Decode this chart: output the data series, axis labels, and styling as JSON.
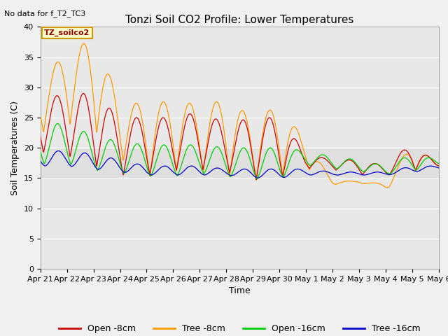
{
  "title": "Tonzi Soil CO2 Profile: Lower Temperatures",
  "annotation_top_left": "No data for f_T2_TC3",
  "legend_box_label": "TZ_soilco2",
  "xlabel": "Time",
  "ylabel": "Soil Temperatures (C)",
  "ylim": [
    0,
    40
  ],
  "yticks": [
    0,
    5,
    10,
    15,
    20,
    25,
    30,
    35,
    40
  ],
  "bg_color": "#e8e8e8",
  "legend_entries": [
    "Open -8cm",
    "Tree -8cm",
    "Open -16cm",
    "Tree -16cm"
  ],
  "legend_colors": [
    "#cc0000",
    "#ff9900",
    "#00cc00",
    "#0000cc"
  ],
  "num_days": 16,
  "xtick_labels": [
    "Apr 21",
    "Apr 22",
    "Apr 23",
    "Apr 24",
    "Apr 25",
    "Apr 26",
    "Apr 27",
    "Apr 28",
    "Apr 29",
    "Apr 30",
    "May 1",
    "May 2",
    "May 3",
    "May 4",
    "May 5",
    "May 6"
  ],
  "title_fontsize": 11,
  "axis_label_fontsize": 9,
  "tick_fontsize": 8,
  "fig_bg": "#f0f0f0"
}
